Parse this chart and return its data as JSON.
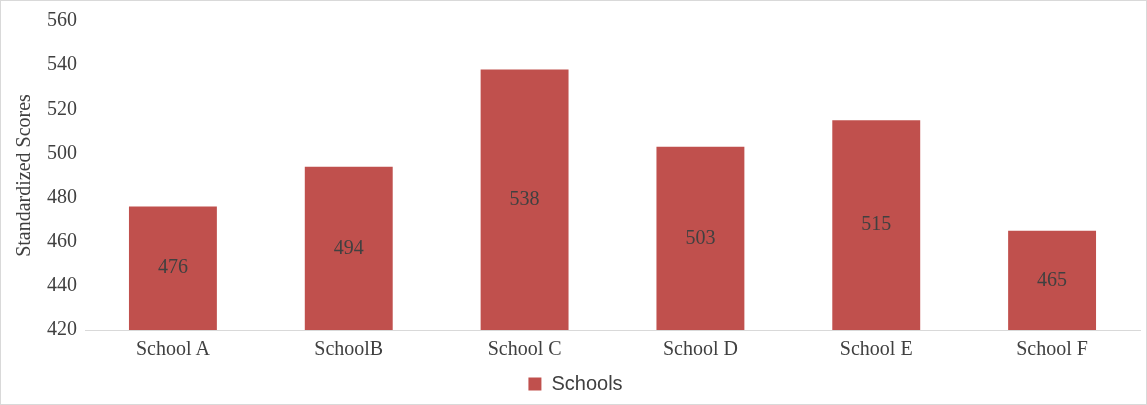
{
  "chart_data": {
    "type": "bar",
    "ylabel": "Standardized Scores",
    "categories": [
      "School A",
      "SchoolB",
      "School C",
      "School D",
      "School E",
      "School F"
    ],
    "series": [
      {
        "name": "Schools",
        "color": "#c0504d",
        "values": [
          476,
          494,
          538,
          503,
          515,
          465
        ]
      }
    ],
    "ylim": [
      420,
      560
    ],
    "yticks": [
      420,
      440,
      460,
      480,
      500,
      520,
      540,
      560
    ],
    "grid": false,
    "legend": "bottom",
    "data_labels": true
  }
}
